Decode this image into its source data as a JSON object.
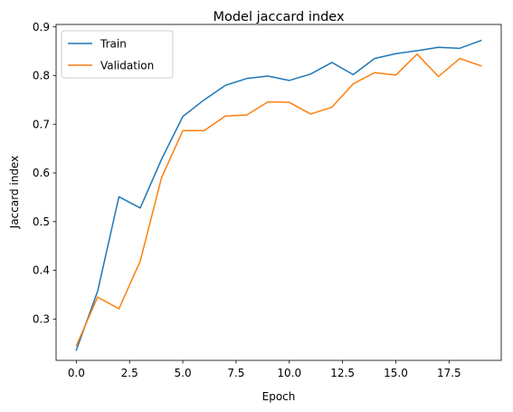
{
  "chart_data": {
    "type": "line",
    "title": "Model jaccard index",
    "xlabel": "Epoch",
    "ylabel": "Jaccard index",
    "x": [
      0,
      1,
      2,
      3,
      4,
      5,
      6,
      7,
      8,
      9,
      10,
      11,
      12,
      13,
      14,
      15,
      16,
      17,
      18,
      19
    ],
    "xlim": [
      -0.95,
      19.95
    ],
    "ylim": [
      0.215,
      0.905
    ],
    "xticks": [
      0.0,
      2.5,
      5.0,
      7.5,
      10.0,
      12.5,
      15.0,
      17.5
    ],
    "xtick_labels": [
      "0.0",
      "2.5",
      "5.0",
      "7.5",
      "10.0",
      "12.5",
      "15.0",
      "17.5"
    ],
    "yticks": [
      0.3,
      0.4,
      0.5,
      0.6,
      0.7,
      0.8,
      0.9
    ],
    "ytick_labels": [
      "0.3",
      "0.4",
      "0.5",
      "0.6",
      "0.7",
      "0.8",
      "0.9"
    ],
    "grid": false,
    "legend_position": "upper-left",
    "series": [
      {
        "name": "Train",
        "color": "#1f77b4",
        "values": [
          0.236,
          0.357,
          0.551,
          0.528,
          0.628,
          0.716,
          0.75,
          0.78,
          0.794,
          0.799,
          0.79,
          0.803,
          0.827,
          0.802,
          0.835,
          0.845,
          0.851,
          0.858,
          0.856,
          0.872
        ]
      },
      {
        "name": "Validation",
        "color": "#ff7f0e",
        "values": [
          0.245,
          0.345,
          0.321,
          0.419,
          0.59,
          0.687,
          0.687,
          0.717,
          0.719,
          0.746,
          0.745,
          0.721,
          0.735,
          0.783,
          0.806,
          0.801,
          0.844,
          0.798,
          0.835,
          0.82
        ]
      }
    ]
  }
}
